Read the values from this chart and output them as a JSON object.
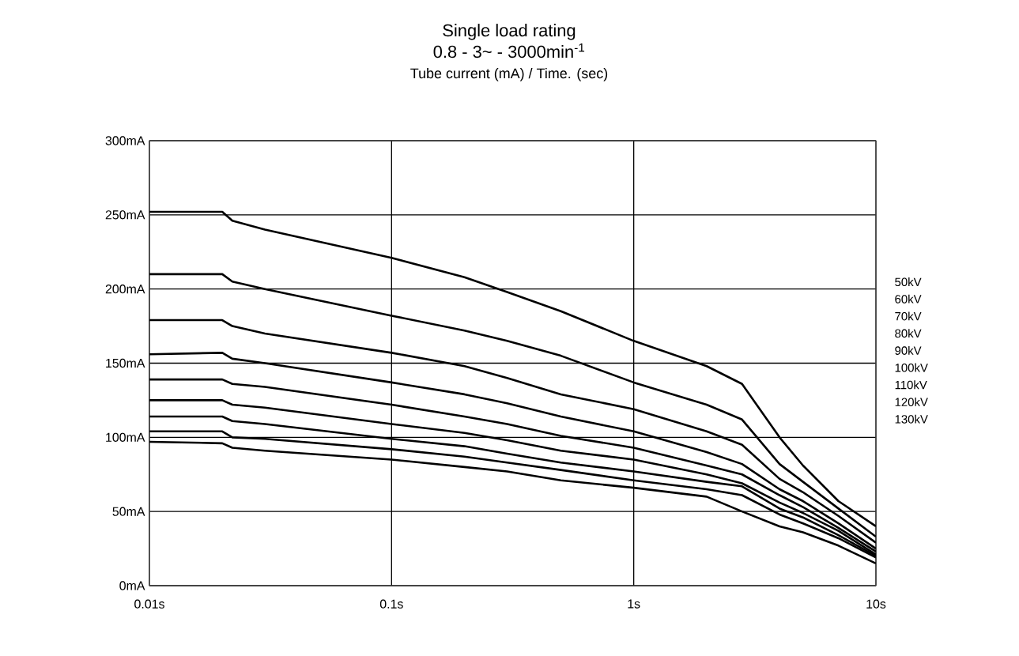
{
  "chart_data": {
    "type": "line",
    "title": "Single load rating",
    "subtitle": "0.8 - 3~ - 3000min$^{-1}$",
    "annotations": [
      "Tube current (mA) / Time. (sec)"
    ],
    "log": "x",
    "grid": true,
    "legend": "right",
    "marker": "none",
    "line_style": "solid",
    "xlim": [
      0.01,
      10
    ],
    "ylim": [
      0,
      300
    ],
    "xticks": [
      {
        "value": 0.01,
        "label": "0.01s"
      },
      {
        "value": 0.1,
        "label": "0.1s"
      },
      {
        "value": 1,
        "label": "1s"
      },
      {
        "value": 10,
        "label": "10s"
      }
    ],
    "yticks": [
      {
        "value": 0,
        "label": "0mA"
      },
      {
        "value": 50,
        "label": "50mA"
      },
      {
        "value": 100,
        "label": "100mA"
      },
      {
        "value": 150,
        "label": "150mA"
      },
      {
        "value": 200,
        "label": "200mA"
      },
      {
        "value": 250,
        "label": "250mA"
      },
      {
        "value": 300,
        "label": "300mA"
      }
    ],
    "x": [
      0.01,
      0.02,
      0.022,
      0.03,
      0.1,
      0.2,
      0.3,
      0.5,
      1,
      2,
      2.8,
      4,
      5,
      7,
      10
    ],
    "series": [
      {
        "name": "50kV",
        "color": "#000000",
        "values": [
          252,
          252,
          246,
          240,
          221,
          208,
          198,
          185,
          165,
          148,
          136,
          100,
          81,
          57,
          40
        ]
      },
      {
        "name": "60kV",
        "color": "#000000",
        "values": [
          210,
          210,
          205,
          200,
          182,
          172,
          165,
          155,
          137,
          122,
          112,
          82,
          70,
          52,
          33
        ]
      },
      {
        "name": "70kV",
        "color": "#000000",
        "values": [
          179,
          179,
          175,
          170,
          157,
          148,
          140,
          129,
          119,
          104,
          95,
          72,
          63,
          47,
          29
        ]
      },
      {
        "name": "80kV",
        "color": "#000000",
        "values": [
          156,
          157,
          153,
          150,
          137,
          129,
          123,
          114,
          104,
          90,
          82,
          65,
          57,
          42,
          25
        ]
      },
      {
        "name": "90kV",
        "color": "#000000",
        "values": [
          139,
          139,
          136,
          134,
          122,
          114,
          109,
          101,
          93,
          81,
          75,
          61,
          53,
          39,
          23
        ]
      },
      {
        "name": "100kV",
        "color": "#000000",
        "values": [
          125,
          125,
          122,
          120,
          109,
          103,
          98,
          91,
          85,
          75,
          69,
          56,
          49,
          37,
          21
        ]
      },
      {
        "name": "110kV",
        "color": "#000000",
        "values": [
          114,
          114,
          111,
          109,
          99,
          94,
          89,
          83,
          77,
          70,
          67,
          52,
          46,
          34,
          20
        ]
      },
      {
        "name": "120kV",
        "color": "#000000",
        "values": [
          104,
          104,
          100,
          99,
          92,
          87,
          83,
          78,
          71,
          65,
          61,
          48,
          42,
          32,
          19
        ]
      },
      {
        "name": "130kV",
        "color": "#000000",
        "values": [
          97,
          96,
          93,
          91,
          85,
          80,
          77,
          71,
          66,
          60,
          50,
          40,
          36,
          27,
          15
        ]
      }
    ]
  }
}
